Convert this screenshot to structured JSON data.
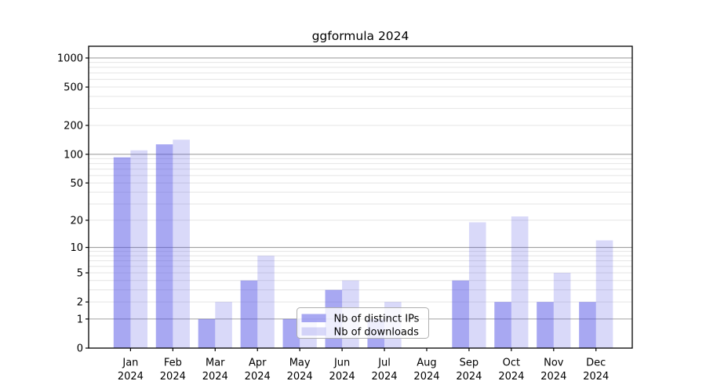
{
  "figure": {
    "title": "ggformula 2024"
  },
  "chart_data": {
    "type": "bar",
    "title": "ggformula 2024",
    "x_categories": [
      "Jan",
      "Feb",
      "Mar",
      "Apr",
      "May",
      "Jun",
      "Jul",
      "Aug",
      "Sep",
      "Oct",
      "Nov",
      "Dec"
    ],
    "x_year": "2024",
    "series": [
      {
        "name": "Nb of distinct IPs",
        "color": "#a8a8f2",
        "rgba": "rgba(82,82,229,0.50)",
        "values": [
          93,
          127,
          1,
          4,
          1,
          3,
          1,
          0,
          4,
          2,
          2,
          2
        ]
      },
      {
        "name": "Nb of downloads",
        "color": "#d9d9f9",
        "rgba": "rgba(82,82,229,0.22)",
        "values": [
          110,
          142,
          2,
          8,
          1,
          4,
          2,
          0,
          19,
          22,
          5,
          12
        ]
      }
    ],
    "yscale": "log1p",
    "ylim": [
      0,
      1320
    ],
    "ytick_values": [
      0,
      1,
      2,
      5,
      10,
      20,
      50,
      100,
      200,
      500,
      1000
    ],
    "ytick_labels": [
      "0",
      "1",
      "2",
      "5",
      "10",
      "20",
      "50",
      "100",
      "200",
      "500",
      "1000"
    ],
    "major_grid_values": [
      1,
      10,
      100,
      1000
    ],
    "grid": true,
    "legend": {
      "position": "lower center",
      "labels": [
        "Nb of distinct IPs",
        "Nb of downloads"
      ]
    },
    "colors": {
      "major_grid": "#a0a0a0",
      "minor_grid": "#e4e4e4",
      "axis": "#000000",
      "legend_border": "#b0b0b0",
      "legend_bg": "rgba(255,255,255,0.8)"
    }
  }
}
